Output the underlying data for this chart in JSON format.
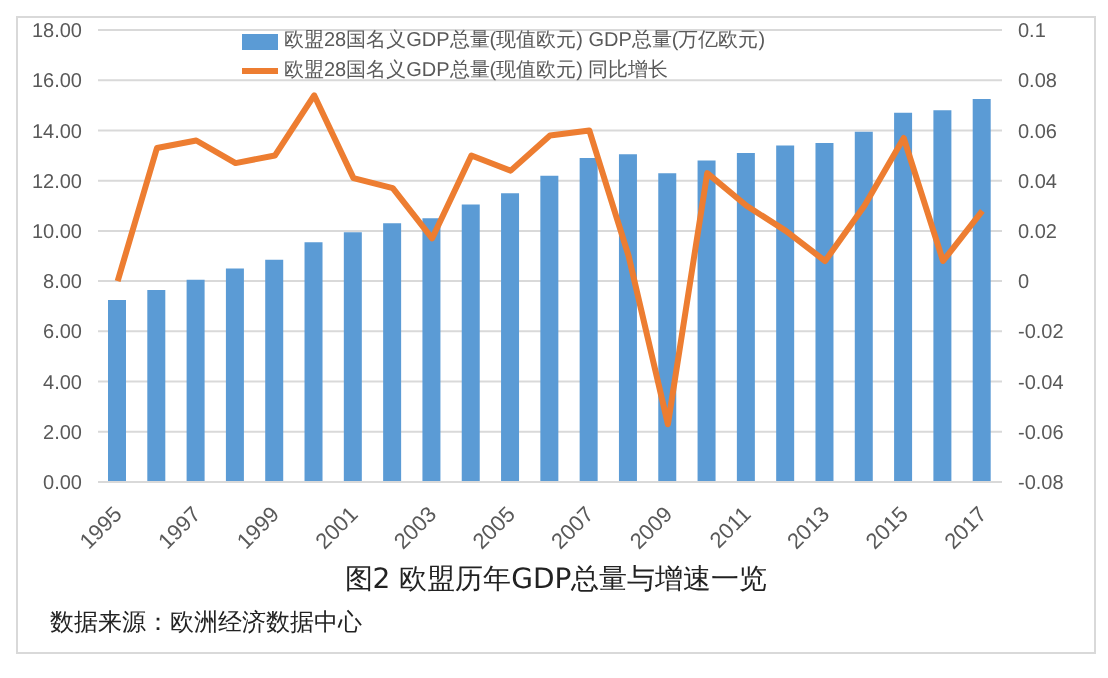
{
  "chart_data": {
    "type": "bar",
    "title": "图2 欧盟历年GDP总量与增速一览",
    "annotations": [
      "数据来源：欧洲经济数据中心"
    ],
    "categories": [
      "1995",
      null,
      "1997",
      null,
      "1999",
      null,
      "2001",
      null,
      "2003",
      null,
      "2005",
      null,
      "2007",
      null,
      "2009",
      null,
      "2011",
      null,
      "2013",
      null,
      "2015",
      null,
      "2017"
    ],
    "series": [
      {
        "name": "欧盟28国名义GDP总量(现值欧元) GDP总量(万亿欧元)",
        "color": "#5b9bd5",
        "values": [
          7.25,
          7.65,
          8.05,
          8.5,
          8.85,
          9.55,
          9.95,
          10.3,
          10.5,
          11.05,
          11.5,
          12.2,
          12.9,
          13.05,
          12.3,
          12.8,
          13.1,
          13.4,
          13.5,
          13.95,
          14.7,
          14.8,
          15.25
        ]
      },
      {
        "name": "欧盟28国名义GDP总量(现值欧元) 同比增长",
        "type": "line",
        "axis": "y2",
        "color": "#ed7d31",
        "values": [
          0,
          0.053,
          0.056,
          0.047,
          0.05,
          0.074,
          0.041,
          0.037,
          0.017,
          0.05,
          0.044,
          0.058,
          0.06,
          0.01,
          -0.057,
          0.043,
          0.03,
          0.02,
          0.008,
          0.03,
          0.057,
          0.008,
          0.028
        ]
      }
    ],
    "ylim": [
      0,
      18
    ],
    "yticks": [
      {
        "value": 0,
        "label": "0.00"
      },
      {
        "value": 2,
        "label": "2.00"
      },
      {
        "value": 4,
        "label": "4.00"
      },
      {
        "value": 6,
        "label": "6.00"
      },
      {
        "value": 8,
        "label": "8.00"
      },
      {
        "value": 10,
        "label": "10.00"
      },
      {
        "value": 12,
        "label": "12.00"
      },
      {
        "value": 14,
        "label": "14.00"
      },
      {
        "value": 16,
        "label": "16.00"
      },
      {
        "value": 18,
        "label": "18.00"
      }
    ],
    "y2lim": [
      -0.08,
      0.1
    ],
    "y2ticks": [
      -0.08,
      -0.06,
      -0.04,
      -0.02,
      0,
      0.02,
      0.04,
      0.06,
      0.08,
      0.1
    ],
    "grid": "y",
    "legend": "top",
    "marker": "none"
  }
}
